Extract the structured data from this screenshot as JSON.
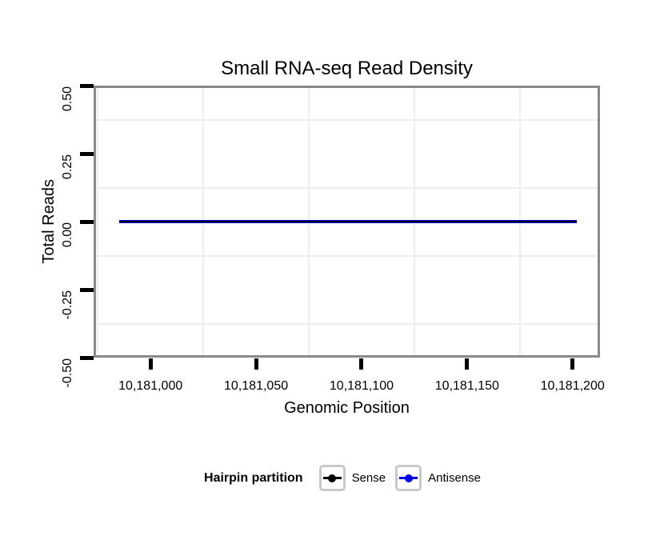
{
  "chart_data": {
    "type": "line",
    "title": "Small RNA-seq Read Density",
    "xlabel": "Genomic Position",
    "ylabel": "Total Reads",
    "xlim": [
      10180973,
      10181213
    ],
    "ylim": [
      -0.5,
      0.5
    ],
    "grid": "minor-only",
    "x_ticks": [
      {
        "value": 10181000,
        "label": "10,181,000"
      },
      {
        "value": 10181050,
        "label": "10,181,050"
      },
      {
        "value": 10181100,
        "label": "10,181,100"
      },
      {
        "value": 10181150,
        "label": "10,181,150"
      },
      {
        "value": 10181200,
        "label": "10,181,200"
      }
    ],
    "y_ticks": [
      {
        "value": 0.5,
        "label": "0.50"
      },
      {
        "value": 0.25,
        "label": "0.25"
      },
      {
        "value": 0.0,
        "label": "0.00"
      },
      {
        "value": -0.25,
        "label": "-0.25"
      },
      {
        "value": -0.5,
        "label": "-0.50"
      }
    ],
    "x_minor_gridlines": [
      10180975,
      10181025,
      10181075,
      10181125,
      10181175
    ],
    "y_minor_gridlines": [
      0.375,
      0.125,
      -0.125,
      -0.375
    ],
    "series": [
      {
        "name": "Sense",
        "color": "#000000",
        "x_start": 10180985,
        "x_end": 10181202,
        "y_value": 0
      },
      {
        "name": "Antisense",
        "color": "#0000ee",
        "x_start": 10180985,
        "x_end": 10181202,
        "y_value": 0
      }
    ],
    "legend": {
      "title": "Hairpin partition",
      "position": "bottom",
      "entries": [
        {
          "label": "Sense",
          "color": "#000000"
        },
        {
          "label": "Antisense",
          "color": "#0000ee"
        }
      ]
    }
  },
  "colors": {
    "background": "#ffffff",
    "panel_border": "#898989",
    "tick": "#000000",
    "grid_minor": "#eeeeee",
    "legend_key_border": "#c9c9c9",
    "sense": "#000000",
    "antisense": "#0000ee"
  }
}
